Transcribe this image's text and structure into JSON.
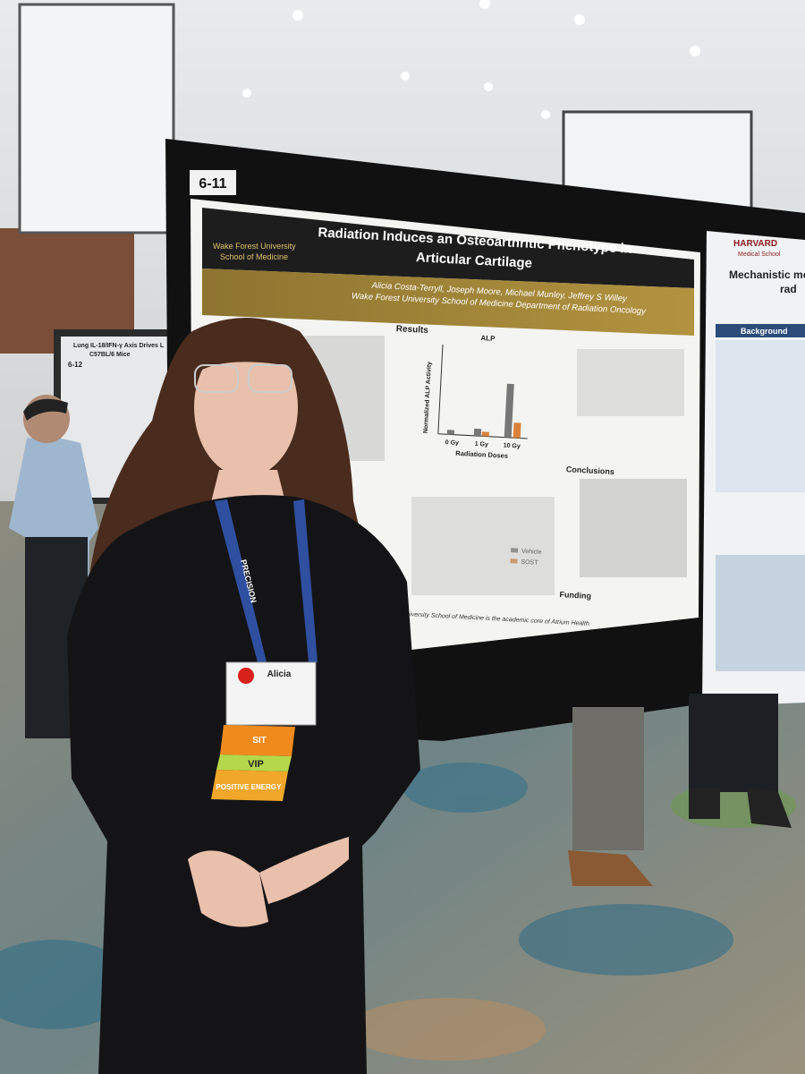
{
  "board_number": "6-11",
  "poster": {
    "logo_lines": [
      "Wake Forest University",
      "School of Medicine"
    ],
    "title_lines": [
      "Radiation Induces an Osteoarthritic Phenotype in",
      "Articular Cartilage"
    ],
    "authors": "Alicia Costa-Terryll, Joseph Moore, Michael Munley, Jeffrey S Willey",
    "affiliation": "Wake Forest University School of Medicine Department of Radiation Oncology",
    "results_heading": "Results",
    "chart_title": "ALP",
    "chart_y_label": "Normalized ALP Activity",
    "chart_x_label": "Radiation Doses",
    "chart_categories": [
      "0 Gy",
      "1 Gy",
      "10 Gy"
    ],
    "legend": [
      "Vehicle",
      "SOST"
    ],
    "conclusions_heading": "Conclusions",
    "funding_heading": "Funding",
    "footer": "University School of Medicine is the academic core of Atrium Health."
  },
  "neighbor_left": {
    "board_number": "6-12",
    "title": "Lung IL-18/IFN-γ Axis Drives L",
    "subtitle": "C57BL/6 Mice"
  },
  "neighbor_right": {
    "institution": "HARVARD",
    "school": "Medical School",
    "title_lines": [
      "Mechanistic mod",
      "rad"
    ],
    "section": "Background"
  },
  "badge": {
    "name": "Alicia",
    "lanyard": "PRECISION",
    "ribbons": [
      "SIT",
      "VIP",
      "POSITIVE ENERGY"
    ]
  }
}
